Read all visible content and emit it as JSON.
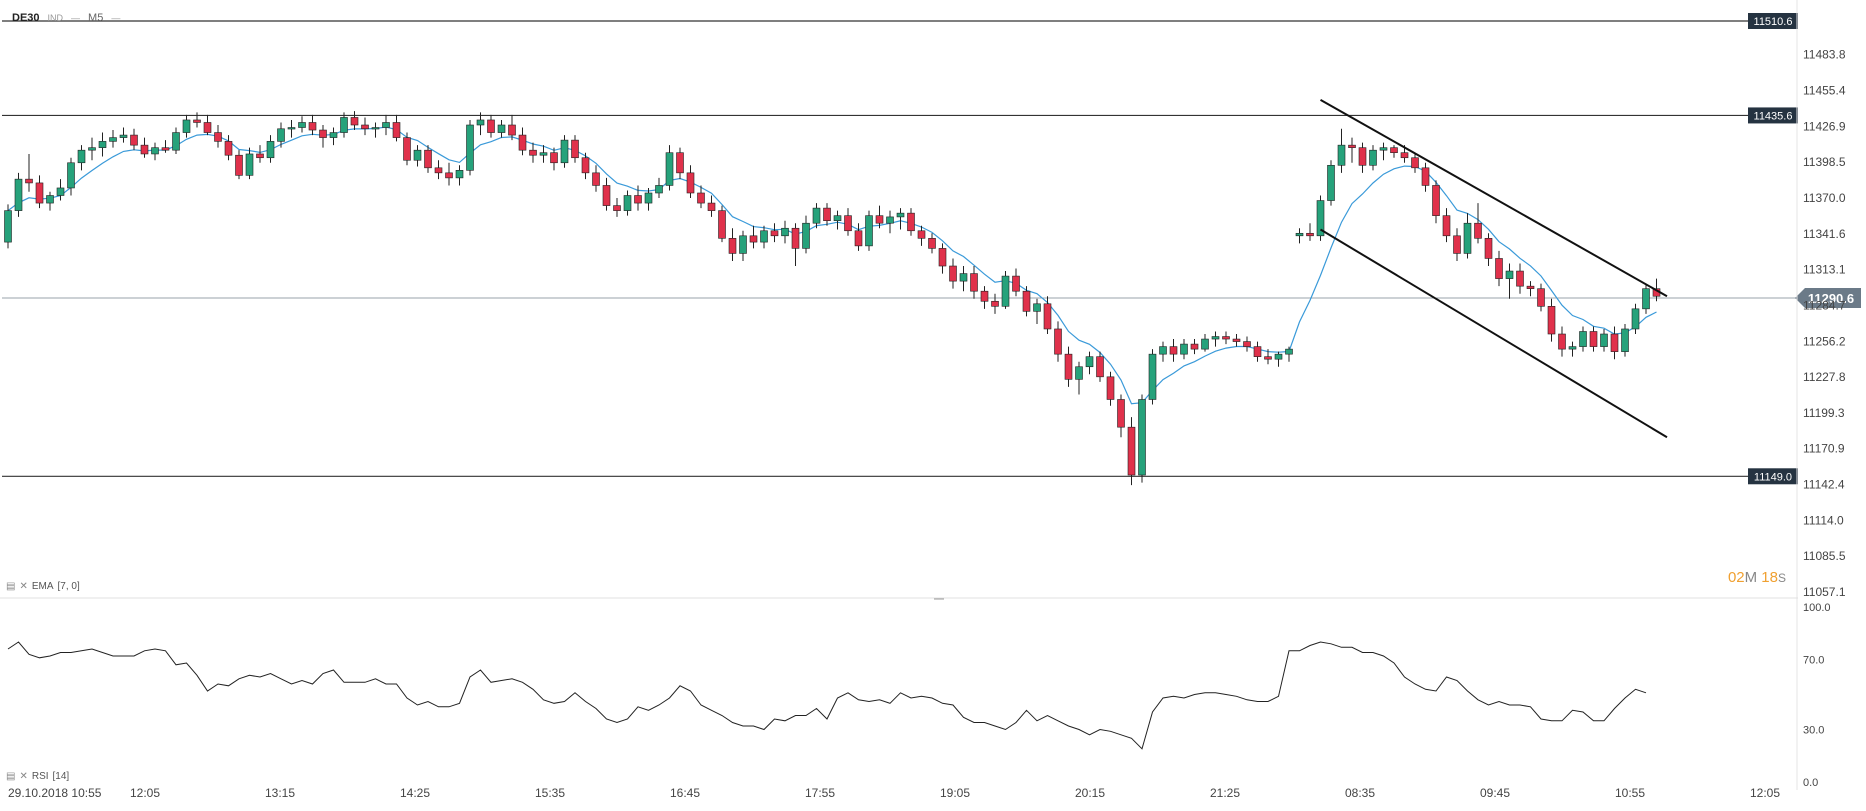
{
  "header": {
    "symbol": "DE30",
    "market": "IND",
    "timeframe": "M5"
  },
  "timer": {
    "minutes": "02",
    "m_label": "M",
    "seconds": "18",
    "s_label": "S"
  },
  "indicators": {
    "ema": {
      "label": "EMA",
      "params": "[7, 0]"
    },
    "rsi": {
      "label": "RSI",
      "params": "[14]"
    }
  },
  "colors": {
    "up": "#26a27b",
    "down": "#e0314b",
    "ema": "#3a9ad9",
    "price_tag": "#253341",
    "current_tag": "#6b7a88"
  },
  "chart_data": [
    {
      "type": "candlestick",
      "title": "",
      "ylim": [
        11057.1,
        11510.6
      ],
      "y_ticks": [
        "11483.8",
        "11455.4",
        "11426.9",
        "11398.5",
        "11370.0",
        "11341.6",
        "11313.1",
        "11284.7",
        "11256.2",
        "11227.8",
        "11199.3",
        "11170.9",
        "11142.4",
        "11114.0",
        "11085.5",
        "11057.1"
      ],
      "x_ticks": [
        "29.10.2018  10:55",
        "12:05",
        "13:15",
        "14:25",
        "15:35",
        "16:45",
        "17:55",
        "19:05",
        "20:15",
        "21:25",
        "08:35",
        "09:45",
        "10:55",
        "12:05"
      ],
      "levels": [
        {
          "value": 11510.6,
          "label": "11510.6"
        },
        {
          "value": 11435.6,
          "label": "11435.6"
        },
        {
          "value": 11149.0,
          "label": "11149.0"
        }
      ],
      "current_price": {
        "value": 11290.6,
        "label": "11290.6"
      },
      "trend_channel": {
        "upper": [
          [
            8.35,
            11448
          ],
          [
            11.2,
            11292
          ]
        ],
        "lower": [
          [
            8.35,
            11345
          ],
          [
            11.2,
            11180
          ]
        ]
      },
      "candles": [
        [
          11335,
          11365,
          11330,
          11360
        ],
        [
          11360,
          11390,
          11355,
          11385
        ],
        [
          11385,
          11405,
          11375,
          11382
        ],
        [
          11382,
          11388,
          11362,
          11366
        ],
        [
          11366,
          11375,
          11360,
          11372
        ],
        [
          11372,
          11385,
          11368,
          11378
        ],
        [
          11378,
          11402,
          11372,
          11398
        ],
        [
          11398,
          11412,
          11392,
          11408
        ],
        [
          11408,
          11418,
          11400,
          11410
        ],
        [
          11410,
          11422,
          11403,
          11415
        ],
        [
          11415,
          11424,
          11410,
          11418
        ],
        [
          11418,
          11426,
          11414,
          11420
        ],
        [
          11420,
          11425,
          11408,
          11412
        ],
        [
          11412,
          11418,
          11402,
          11405
        ],
        [
          11405,
          11414,
          11400,
          11410
        ],
        [
          11410,
          11416,
          11406,
          11408
        ],
        [
          11408,
          11426,
          11405,
          11422
        ],
        [
          11422,
          11436,
          11418,
          11432
        ],
        [
          11432,
          11438,
          11426,
          11430
        ],
        [
          11430,
          11436,
          11420,
          11422
        ],
        [
          11422,
          11428,
          11410,
          11415
        ],
        [
          11415,
          11420,
          11400,
          11404
        ],
        [
          11404,
          11408,
          11385,
          11388
        ],
        [
          11388,
          11410,
          11385,
          11405
        ],
        [
          11405,
          11412,
          11398,
          11402
        ],
        [
          11402,
          11420,
          11398,
          11415
        ],
        [
          11415,
          11430,
          11410,
          11425
        ],
        [
          11425,
          11432,
          11418,
          11426
        ],
        [
          11426,
          11435,
          11422,
          11430
        ],
        [
          11430,
          11436,
          11420,
          11424
        ],
        [
          11424,
          11428,
          11410,
          11418
        ],
        [
          11418,
          11426,
          11412,
          11422
        ],
        [
          11422,
          11438,
          11418,
          11434
        ],
        [
          11434,
          11439,
          11424,
          11428
        ],
        [
          11428,
          11434,
          11420,
          11425
        ],
        [
          11425,
          11430,
          11418,
          11426
        ],
        [
          11426,
          11436,
          11420,
          11430
        ],
        [
          11430,
          11436,
          11415,
          11418
        ],
        [
          11418,
          11422,
          11396,
          11400
        ],
        [
          11400,
          11412,
          11395,
          11408
        ],
        [
          11408,
          11412,
          11390,
          11394
        ],
        [
          11394,
          11400,
          11385,
          11390
        ],
        [
          11390,
          11398,
          11380,
          11386
        ],
        [
          11386,
          11396,
          11380,
          11392
        ],
        [
          11392,
          11432,
          11388,
          11428
        ],
        [
          11428,
          11438,
          11420,
          11432
        ],
        [
          11432,
          11436,
          11418,
          11422
        ],
        [
          11422,
          11432,
          11418,
          11428
        ],
        [
          11428,
          11436,
          11416,
          11420
        ],
        [
          11420,
          11426,
          11404,
          11408
        ],
        [
          11408,
          11414,
          11398,
          11404
        ],
        [
          11404,
          11412,
          11398,
          11406
        ],
        [
          11406,
          11410,
          11392,
          11398
        ],
        [
          11398,
          11420,
          11394,
          11416
        ],
        [
          11416,
          11420,
          11398,
          11402
        ],
        [
          11402,
          11406,
          11385,
          11390
        ],
        [
          11390,
          11396,
          11375,
          11380
        ],
        [
          11380,
          11386,
          11360,
          11364
        ],
        [
          11364,
          11370,
          11355,
          11360
        ],
        [
          11360,
          11376,
          11356,
          11372
        ],
        [
          11372,
          11380,
          11360,
          11366
        ],
        [
          11366,
          11378,
          11360,
          11374
        ],
        [
          11374,
          11386,
          11370,
          11380
        ],
        [
          11380,
          11412,
          11376,
          11406
        ],
        [
          11406,
          11410,
          11385,
          11390
        ],
        [
          11390,
          11396,
          11370,
          11374
        ],
        [
          11374,
          11380,
          11362,
          11366
        ],
        [
          11366,
          11372,
          11355,
          11360
        ],
        [
          11360,
          11364,
          11335,
          11338
        ],
        [
          11338,
          11346,
          11320,
          11326
        ],
        [
          11326,
          11344,
          11320,
          11340
        ],
        [
          11340,
          11348,
          11330,
          11335
        ],
        [
          11335,
          11348,
          11330,
          11344
        ],
        [
          11344,
          11350,
          11335,
          11340
        ],
        [
          11340,
          11352,
          11334,
          11346
        ],
        [
          11346,
          11350,
          11316,
          11330
        ],
        [
          11330,
          11356,
          11326,
          11350
        ],
        [
          11350,
          11366,
          11346,
          11362
        ],
        [
          11362,
          11366,
          11348,
          11352
        ],
        [
          11352,
          11360,
          11345,
          11356
        ],
        [
          11356,
          11362,
          11340,
          11344
        ],
        [
          11344,
          11350,
          11328,
          11332
        ],
        [
          11332,
          11360,
          11328,
          11356
        ],
        [
          11356,
          11364,
          11346,
          11350
        ],
        [
          11350,
          11360,
          11342,
          11355
        ],
        [
          11355,
          11362,
          11345,
          11358
        ],
        [
          11358,
          11362,
          11340,
          11344
        ],
        [
          11344,
          11348,
          11332,
          11338
        ],
        [
          11338,
          11342,
          11326,
          11330
        ],
        [
          11330,
          11334,
          11310,
          11316
        ],
        [
          11316,
          11322,
          11298,
          11304
        ],
        [
          11304,
          11316,
          11296,
          11310
        ],
        [
          11310,
          11316,
          11290,
          11296
        ],
        [
          11296,
          11300,
          11282,
          11288
        ],
        [
          11288,
          11294,
          11278,
          11284
        ],
        [
          11284,
          11312,
          11282,
          11308
        ],
        [
          11308,
          11314,
          11292,
          11296
        ],
        [
          11296,
          11300,
          11276,
          11280
        ],
        [
          11280,
          11290,
          11270,
          11286
        ],
        [
          11286,
          11292,
          11262,
          11266
        ],
        [
          11266,
          11272,
          11240,
          11246
        ],
        [
          11246,
          11252,
          11220,
          11226
        ],
        [
          11226,
          11240,
          11214,
          11236
        ],
        [
          11236,
          11248,
          11230,
          11244
        ],
        [
          11244,
          11248,
          11224,
          11228
        ],
        [
          11228,
          11232,
          11205,
          11210
        ],
        [
          11210,
          11214,
          11180,
          11188
        ],
        [
          11188,
          11196,
          11142,
          11150
        ],
        [
          11150,
          11214,
          11144,
          11210
        ],
        [
          11210,
          11250,
          11206,
          11246
        ],
        [
          11246,
          11256,
          11240,
          11252
        ],
        [
          11252,
          11258,
          11240,
          11246
        ],
        [
          11246,
          11258,
          11242,
          11254
        ],
        [
          11254,
          11258,
          11246,
          11250
        ],
        [
          11250,
          11262,
          11248,
          11258
        ],
        [
          11258,
          11264,
          11252,
          11260
        ],
        [
          11260,
          11264,
          11254,
          11258
        ],
        [
          11258,
          11262,
          11252,
          11256
        ],
        [
          11256,
          11260,
          11248,
          11252
        ],
        [
          11252,
          11256,
          11240,
          11244
        ],
        [
          11244,
          11250,
          11238,
          11242
        ],
        [
          11242,
          11248,
          11236,
          11246
        ],
        [
          11246,
          11252,
          11240,
          11250
        ],
        [
          11340,
          11346,
          11334,
          11342
        ],
        [
          11342,
          11350,
          11336,
          11340
        ],
        [
          11340,
          11372,
          11336,
          11368
        ],
        [
          11368,
          11400,
          11364,
          11396
        ],
        [
          11396,
          11425,
          11390,
          11412
        ],
        [
          11412,
          11418,
          11398,
          11410
        ],
        [
          11410,
          11414,
          11390,
          11396
        ],
        [
          11396,
          11412,
          11392,
          11408
        ],
        [
          11408,
          11414,
          11400,
          11410
        ],
        [
          11410,
          11412,
          11402,
          11406
        ],
        [
          11406,
          11412,
          11398,
          11402
        ],
        [
          11402,
          11406,
          11390,
          11394
        ],
        [
          11394,
          11398,
          11375,
          11380
        ],
        [
          11380,
          11384,
          11350,
          11356
        ],
        [
          11356,
          11362,
          11335,
          11340
        ],
        [
          11340,
          11346,
          11320,
          11326
        ],
        [
          11326,
          11358,
          11322,
          11350
        ],
        [
          11350,
          11366,
          11334,
          11338
        ],
        [
          11338,
          11342,
          11316,
          11322
        ],
        [
          11322,
          11328,
          11300,
          11306
        ],
        [
          11306,
          11318,
          11290,
          11312
        ],
        [
          11312,
          11318,
          11294,
          11300
        ],
        [
          11300,
          11304,
          11292,
          11298
        ],
        [
          11298,
          11302,
          11280,
          11284
        ],
        [
          11284,
          11290,
          11256,
          11262
        ],
        [
          11262,
          11268,
          11244,
          11250
        ],
        [
          11250,
          11256,
          11244,
          11252
        ],
        [
          11252,
          11268,
          11248,
          11264
        ],
        [
          11264,
          11268,
          11248,
          11252
        ],
        [
          11252,
          11266,
          11248,
          11262
        ],
        [
          11262,
          11268,
          11242,
          11248
        ],
        [
          11248,
          11270,
          11244,
          11266
        ],
        [
          11266,
          11286,
          11262,
          11282
        ],
        [
          11282,
          11302,
          11278,
          11298
        ],
        [
          11298,
          11306,
          11288,
          11292
        ]
      ]
    },
    {
      "type": "line",
      "title": "RSI",
      "ylim": [
        0,
        100
      ],
      "y_ticks": [
        "100.0",
        "70.0",
        "30.0",
        "0.0"
      ],
      "series": [
        {
          "values": [
            76,
            80,
            73,
            71,
            72,
            74,
            74,
            75,
            76,
            74,
            72,
            72,
            72,
            75,
            76,
            75,
            67,
            68,
            61,
            52,
            56,
            55,
            59,
            61,
            60,
            62,
            59,
            56,
            58,
            56,
            62,
            64,
            57,
            57,
            57,
            59,
            56,
            56,
            48,
            44,
            46,
            43,
            43,
            45,
            60,
            64,
            57,
            58,
            59,
            57,
            53,
            47,
            45,
            46,
            51,
            46,
            42,
            36,
            34,
            36,
            43,
            41,
            44,
            48,
            55,
            52,
            44,
            41,
            38,
            34,
            32,
            32,
            30,
            36,
            35,
            38,
            38,
            42,
            36,
            48,
            51,
            47,
            46,
            47,
            45,
            51,
            48,
            49,
            48,
            45,
            44,
            37,
            34,
            34,
            32,
            30,
            34,
            41,
            35,
            38,
            35,
            32,
            30,
            27,
            30,
            29,
            27,
            25,
            19,
            40,
            48,
            49,
            48,
            50,
            51,
            51,
            50,
            49,
            47,
            46,
            46,
            49,
            75,
            75,
            78,
            80,
            79,
            77,
            77,
            74,
            74,
            72,
            68,
            60,
            56,
            53,
            52,
            60,
            58,
            52,
            47,
            44,
            46,
            44,
            44,
            43,
            36,
            35,
            35,
            41,
            40,
            35,
            35,
            42,
            48,
            53,
            51
          ]
        }
      ]
    }
  ]
}
